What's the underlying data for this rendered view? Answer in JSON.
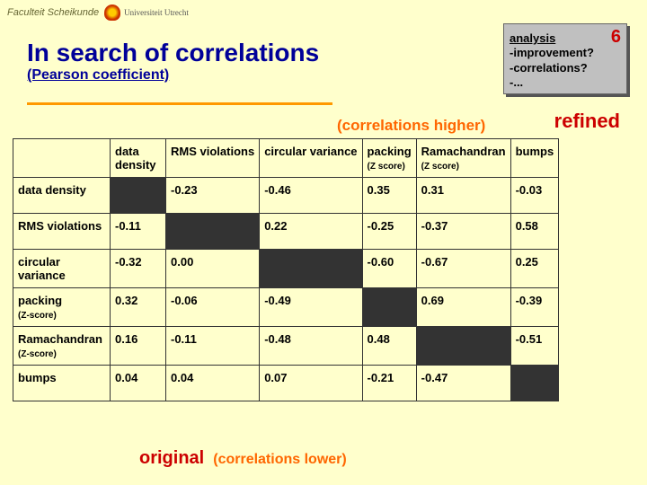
{
  "header": {
    "faculty": "Faculteit Scheikunde",
    "university": "Universiteit Utrecht"
  },
  "title": "In search of correlations",
  "subtitle": "(Pearson coefficient)",
  "noteBox": {
    "label": "analysis",
    "number": "6",
    "lines": [
      "-improvement?",
      "-correlations?",
      "-..."
    ]
  },
  "labels": {
    "corrHigher": "(correlations higher)",
    "refined": "refined",
    "original": "original",
    "corrLower": "(correlations lower)"
  },
  "zscore": "(Z score)",
  "zscoreRow": "(Z-score)",
  "columns": [
    "",
    "data density",
    "RMS violations",
    "circular variance",
    "packing",
    "Ramachandran",
    "bumps"
  ],
  "rows": [
    {
      "label": "data density",
      "cells": [
        "",
        "-0.23",
        "-0.46",
        "0.35",
        "0.31",
        "-0.03"
      ]
    },
    {
      "label": "RMS violations",
      "cells": [
        "-0.11",
        "",
        "0.22",
        "-0.25",
        "-0.37",
        "0.58"
      ]
    },
    {
      "label": "circular variance",
      "cells": [
        "-0.32",
        "0.00",
        "",
        "-0.60",
        "-0.67",
        "0.25"
      ]
    },
    {
      "label": "packing",
      "sub": true,
      "cells": [
        "0.32",
        "-0.06",
        "-0.49",
        "",
        "0.69",
        "-0.39"
      ]
    },
    {
      "label": "Ramachandran",
      "sub": true,
      "cells": [
        "0.16",
        "-0.11",
        "-0.48",
        "0.48",
        "",
        "-0.51"
      ]
    },
    {
      "label": "bumps",
      "cells": [
        "0.04",
        "0.04",
        "0.07",
        "-0.21",
        "-0.47",
        ""
      ]
    }
  ],
  "colors": {
    "bg": "#ffffcc",
    "titleColor": "#000099",
    "accent": "#cc0000",
    "orange": "#ff6600",
    "diag": "#333333"
  }
}
